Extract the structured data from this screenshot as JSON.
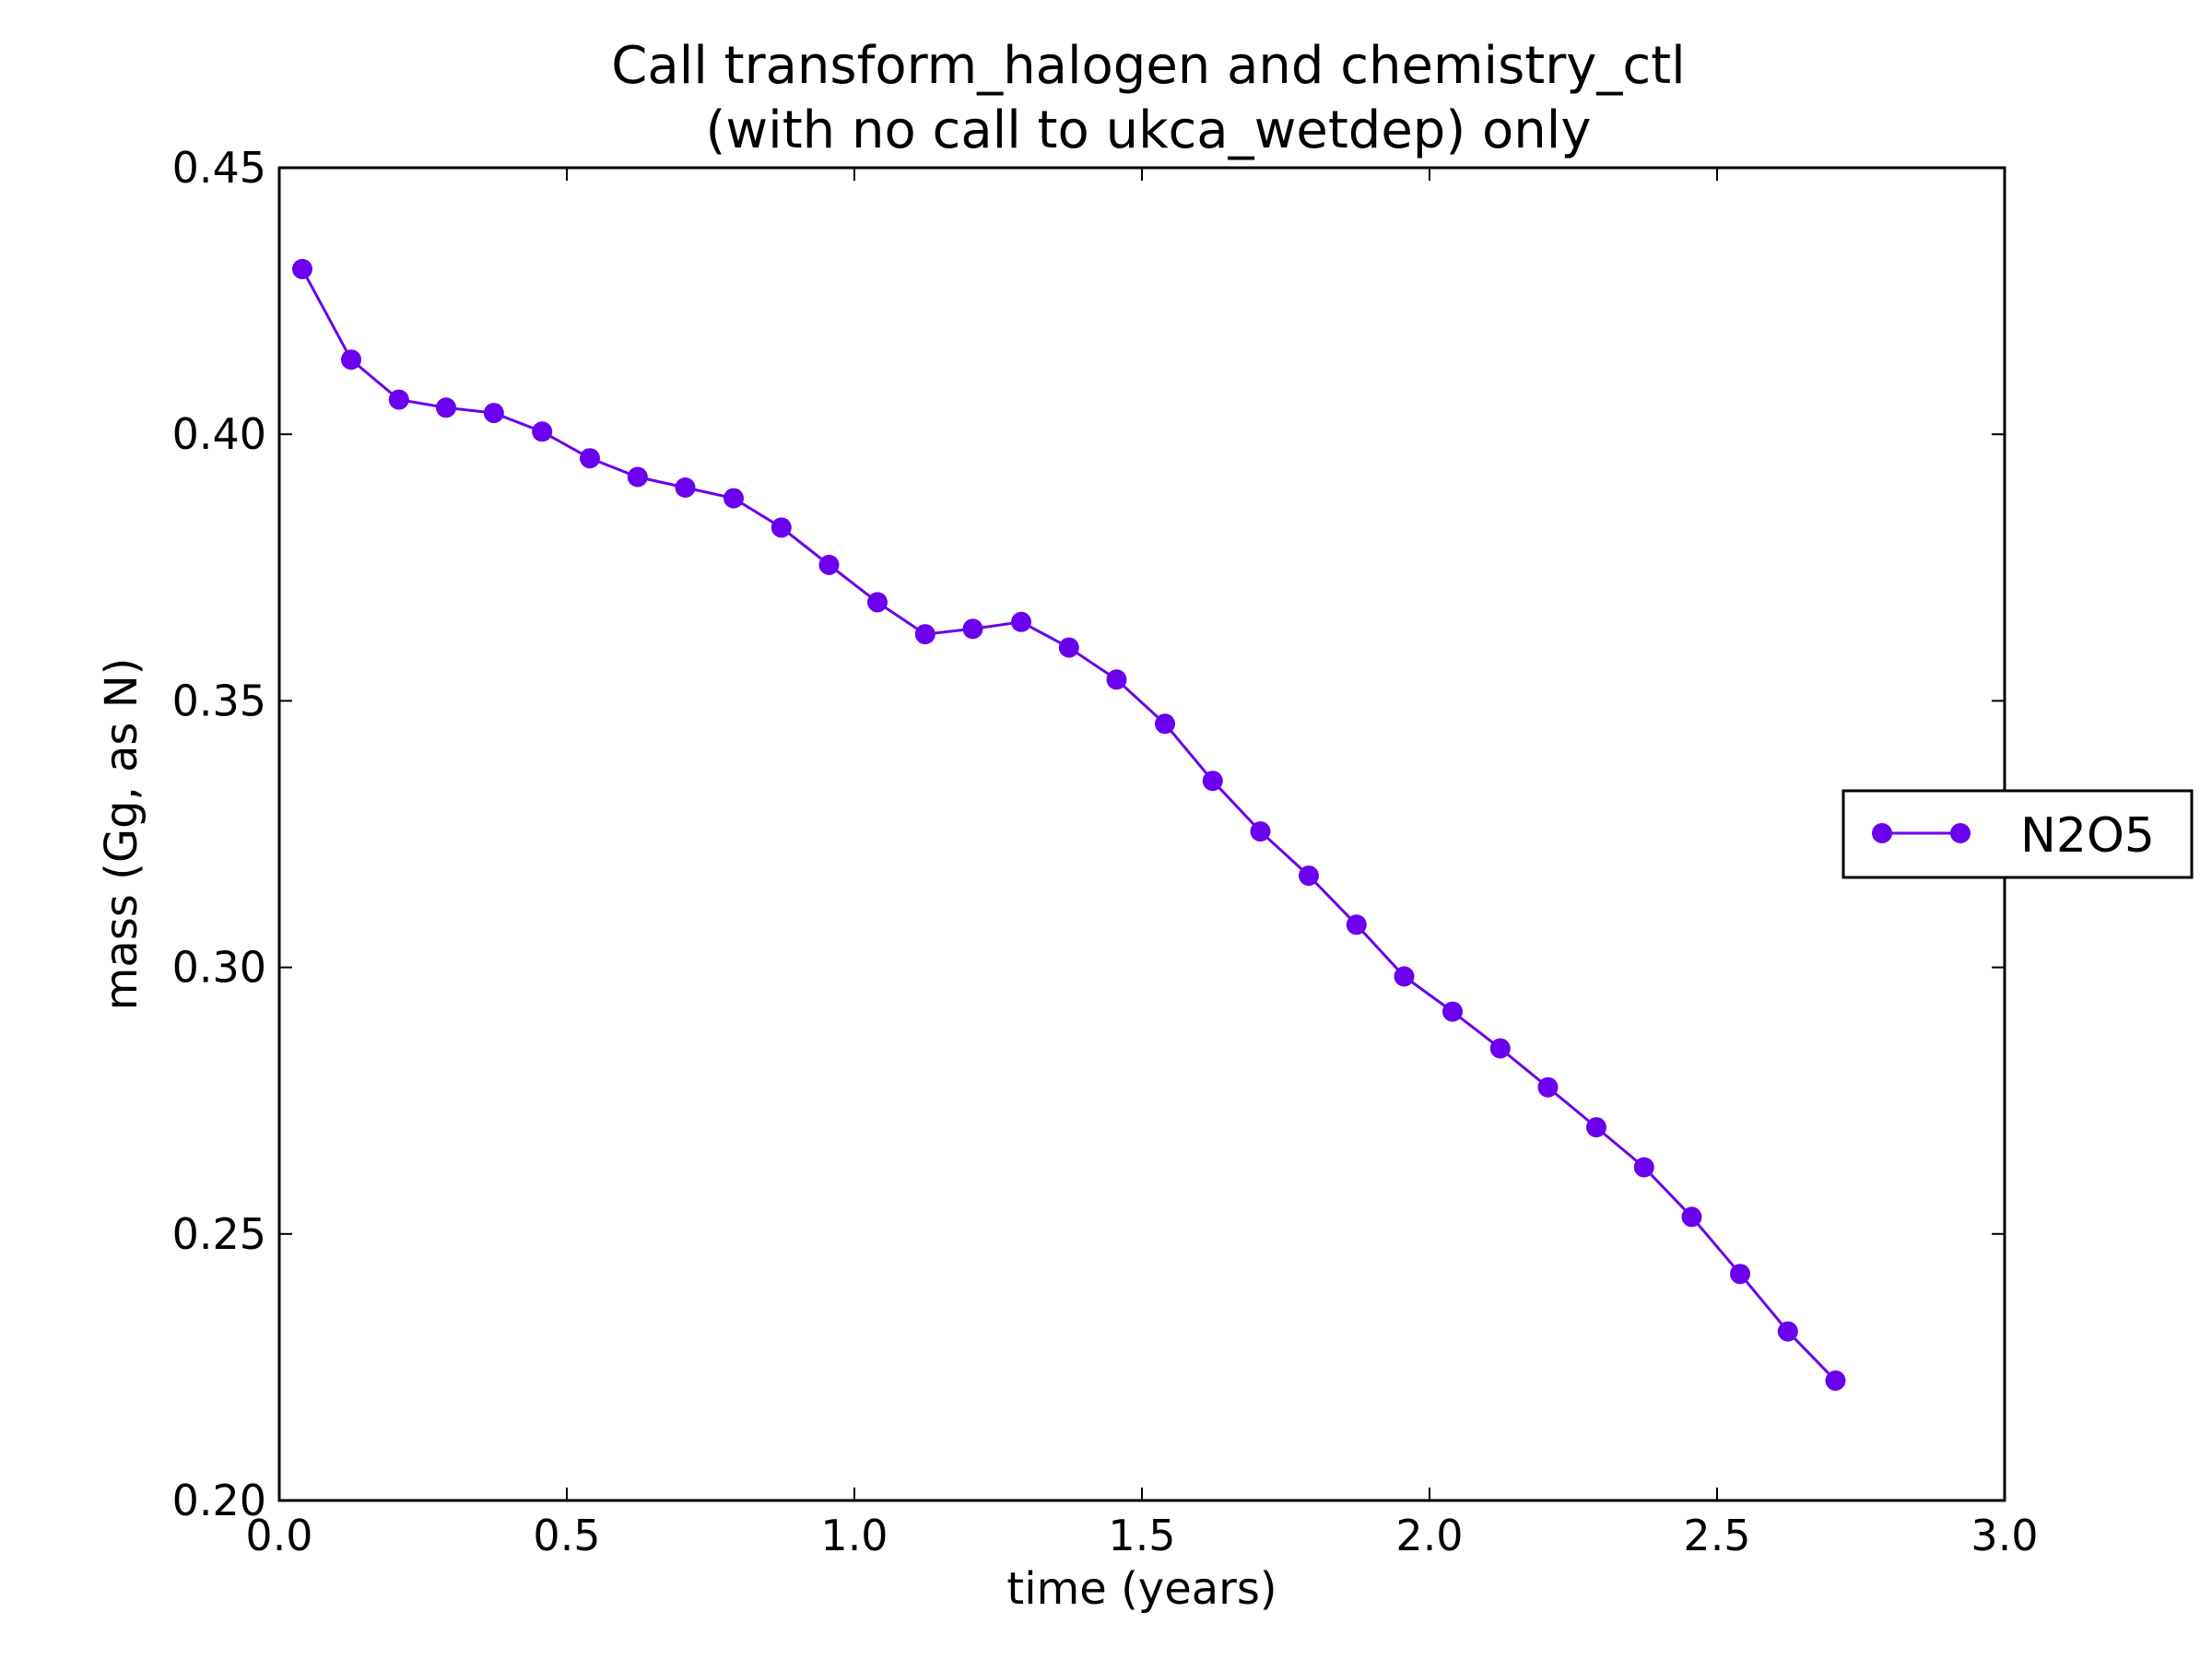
{
  "chart_data": {
    "type": "line",
    "title_lines": [
      "Call transform_halogen and chemistry_ctl",
      "(with no call to ukca_wetdep) only"
    ],
    "xlabel": "time (years)",
    "ylabel": "mass (Gg, as N)",
    "xlim": [
      0.0,
      3.0
    ],
    "ylim": [
      0.2,
      0.45
    ],
    "xticks": [
      0.0,
      0.5,
      1.0,
      1.5,
      2.0,
      2.5,
      3.0
    ],
    "xtick_labels": [
      "0.0",
      "0.5",
      "1.0",
      "1.5",
      "2.0",
      "2.5",
      "3.0"
    ],
    "yticks": [
      0.2,
      0.25,
      0.3,
      0.35,
      0.4,
      0.45
    ],
    "ytick_labels": [
      "0.20",
      "0.25",
      "0.30",
      "0.35",
      "0.40",
      "0.45"
    ],
    "grid": false,
    "legend_position": "right-outside",
    "series": [
      {
        "name": "N2O5",
        "color": "#6a00ee",
        "marker": "circle",
        "x": [
          0.04,
          0.125,
          0.208,
          0.29,
          0.373,
          0.457,
          0.54,
          0.623,
          0.706,
          0.79,
          0.873,
          0.956,
          1.04,
          1.123,
          1.206,
          1.29,
          1.373,
          1.456,
          1.54,
          1.623,
          1.706,
          1.79,
          1.873,
          1.956,
          2.04,
          2.123,
          2.206,
          2.29,
          2.373,
          2.456,
          2.54,
          2.623,
          2.706
        ],
        "y": [
          0.431,
          0.414,
          0.4065,
          0.405,
          0.404,
          0.4005,
          0.3955,
          0.392,
          0.39,
          0.388,
          0.3825,
          0.3755,
          0.3685,
          0.3625,
          0.3635,
          0.3648,
          0.36,
          0.354,
          0.3457,
          0.335,
          0.3255,
          0.3172,
          0.308,
          0.2983,
          0.2917,
          0.2848,
          0.2775,
          0.27,
          0.2625,
          0.2532,
          0.2425,
          0.2317,
          0.2225
        ]
      }
    ]
  }
}
